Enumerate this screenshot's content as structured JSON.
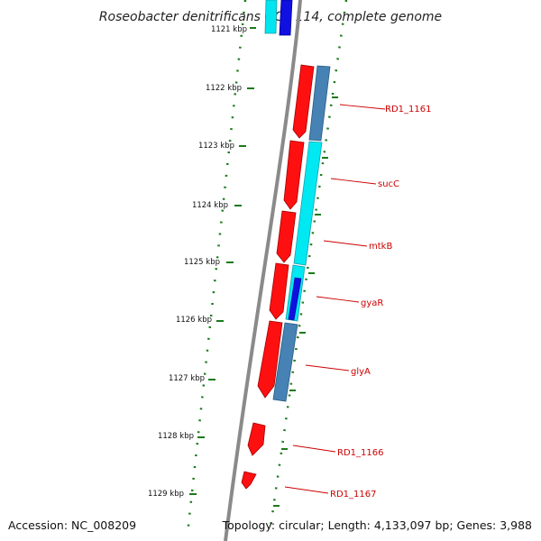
{
  "title": "Roseobacter denitrificans OCh 114, complete genome",
  "accession": "Accession: NC_008209",
  "topology": "Topology: circular; Length: 4,133,097 bp; Genes: 3,988",
  "colors": {
    "forward_strand": "#ff0000",
    "cds_cyan": "#00e5f0",
    "cds_blue": "#1010e0",
    "cds_steelblue": "#3f7fb4",
    "tick": "#1a7a1a",
    "backbone": "#888888",
    "label": "#cc0000"
  },
  "scale": {
    "unit": "kbp",
    "ticks": [
      {
        "kbp": 1121,
        "label": "1121 kbp"
      },
      {
        "kbp": 1122,
        "label": "1122 kbp"
      },
      {
        "kbp": 1123,
        "label": "1123 kbp"
      },
      {
        "kbp": 1124,
        "label": "1124 kbp"
      },
      {
        "kbp": 1125,
        "label": "1125 kbp"
      },
      {
        "kbp": 1126,
        "label": "1126 kbp"
      },
      {
        "kbp": 1127,
        "label": "1127 kbp"
      },
      {
        "kbp": 1128,
        "label": "1128 kbp"
      },
      {
        "kbp": 1129,
        "label": "1129 kbp"
      }
    ]
  },
  "gene_labels": [
    {
      "text": "RD1_1161"
    },
    {
      "text": "sucC"
    },
    {
      "text": "mtkB"
    },
    {
      "text": "gyaR"
    },
    {
      "text": "glyA"
    },
    {
      "text": "RD1_1166"
    },
    {
      "text": "RD1_1167"
    }
  ]
}
